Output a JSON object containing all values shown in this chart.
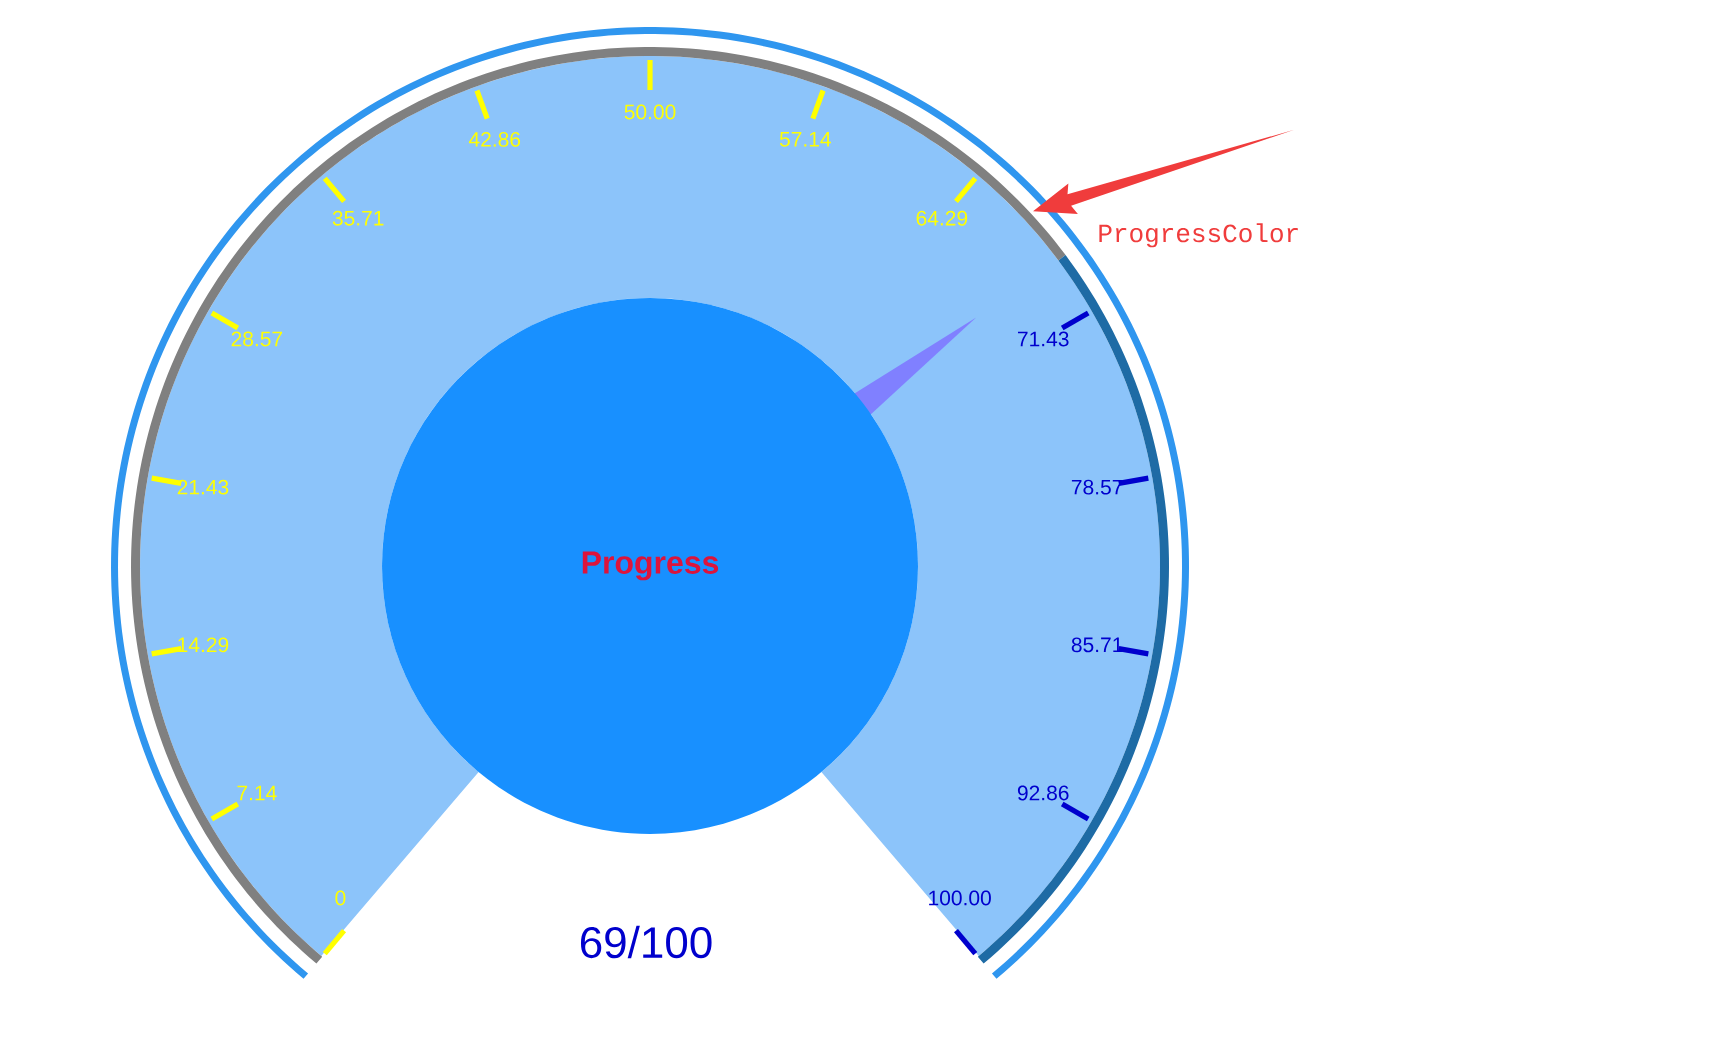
{
  "chart_data": {
    "type": "donut",
    "title": "Progress",
    "categories": [
      "ProgressColor",
      null
    ],
    "values": [
      69,
      31
    ],
    "colors": [
      "#808080",
      "#1e6ba5"
    ],
    "needle": "ProgressColor",
    "annotations": [
      "69/100",
      "0",
      "7.14",
      "14.29",
      "21.43",
      "28.57",
      "35.71",
      "42.86",
      "50.00",
      "57.14",
      "64.29",
      "71.43",
      "78.57",
      "85.71",
      "92.86",
      "100.00"
    ]
  }
}
